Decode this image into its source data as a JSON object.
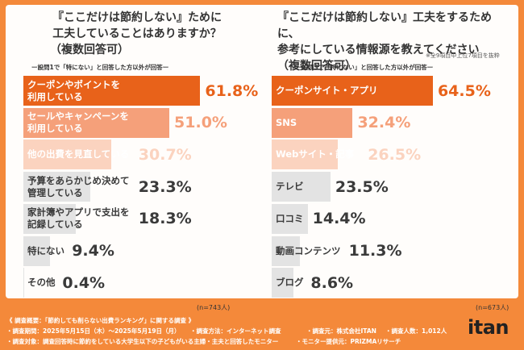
{
  "colors": {
    "frame": "#f4893a",
    "rank1": "#e8621a",
    "rank2": "#f5a07a",
    "rank3": "#fbd3bf",
    "rest": "#e3e3e3",
    "text_dark": "#3a3a3a"
  },
  "left": {
    "question_lines": [
      "『ここだけは節約しない』ために",
      "工夫していることはありますか？",
      "（複数回答可）"
    ],
    "subnote": "ー設問1で「特にない」と回答した方以外が回答ー",
    "n_label": "(n=743人)"
  },
  "right": {
    "question_lines": [
      "『ここだけは節約しない』工夫をするために、",
      "参考にしている情報源を教えてください",
      "（複数回答可）"
    ],
    "extract_note": "※全9項目中上位7項目を抜粋",
    "subnote": "ー設問3で「特にない」と回答した方以外が回答ー",
    "n_label": "(n=673人)"
  },
  "chart_data": [
    {
      "type": "bar",
      "orientation": "horizontal",
      "categories": [
        "クーポンやポイントを\n利用している",
        "セールやキャンペーンを\n利用している",
        "他の出費を見直している",
        "予算をあらかじめ決めて\n管理している",
        "家計簿やアプリで支出を\n記録している",
        "特にない",
        "その他"
      ],
      "values": [
        61.8,
        51.0,
        30.7,
        23.3,
        18.3,
        9.4,
        0.4
      ],
      "value_labels": [
        "61.8%",
        "51.0%",
        "30.7%",
        "23.3%",
        "18.3%",
        "9.4%",
        "0.4%"
      ],
      "xlim": [
        0,
        100
      ]
    },
    {
      "type": "bar",
      "orientation": "horizontal",
      "categories": [
        "クーポンサイト・アプリ",
        "SNS",
        "Webサイト・記事",
        "テレビ",
        "口コミ",
        "動画コンテンツ",
        "ブログ"
      ],
      "values": [
        64.5,
        32.4,
        26.5,
        23.5,
        14.4,
        11.3,
        8.6
      ],
      "value_labels": [
        "64.5%",
        "32.4%",
        "26.5%",
        "23.5%",
        "14.4%",
        "11.3%",
        "8.6%"
      ],
      "xlim": [
        0,
        100
      ]
    }
  ],
  "footer": {
    "title": "《 調査概要：「節約しても削らない出費ランキング」に関する調査 》",
    "period": "・調査期間：2025年5月15日（木）～2025年5月19日（月）",
    "method": "・調査方法：インターネット調査",
    "source": "・調査元：株式会社ITAN",
    "count": "・調査人数：1,012人",
    "target": "・調査対象：調査回答時に節約をしている大学生以下の子どもがいる主婦・主夫と回答したモニター",
    "provider": "・モニター提供元：PRIZMAリサーチ",
    "logo": "itan"
  }
}
